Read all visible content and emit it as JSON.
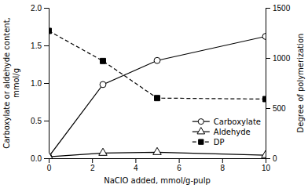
{
  "chart_data": {
    "type": "line",
    "x_label": "NaClO added, mmol/g-pulp",
    "y_label": "Carboxylate or aldehyde content,\nmmol/g",
    "y2_label": "Degree of polymerization",
    "x": [
      0,
      2.5,
      5,
      10
    ],
    "series": [
      {
        "name": "Carboxylate",
        "color": "black",
        "marker": "circle",
        "line_style": "solid",
        "values": [
          0.02,
          0.98,
          1.3,
          1.62
        ]
      },
      {
        "name": "Aldehyde",
        "color": "black",
        "marker": "triangle",
        "line_style": "solid",
        "values": [
          0.02,
          0.07,
          0.08,
          0.04
        ]
      },
      {
        "name": "DP",
        "color": "black",
        "marker": "square",
        "line_style": "dashed",
        "axis": "y2",
        "values": [
          1270,
          970,
          600,
          590
        ]
      }
    ],
    "xlim": [
      0,
      10
    ],
    "xticks": [
      0,
      2,
      4,
      6,
      8,
      10
    ],
    "ylim": [
      0,
      2.0
    ],
    "yticks": [
      {
        "value": 0.0,
        "label": "0.0"
      },
      0.5,
      {
        "value": 1.0,
        "label": "1.0"
      },
      1.5,
      {
        "value": 2.0,
        "label": "2.0"
      }
    ],
    "y2lim": [
      0,
      1500
    ],
    "y2ticks": [
      0,
      500,
      1000,
      1500
    ],
    "grid": false,
    "legend": "lower right"
  }
}
